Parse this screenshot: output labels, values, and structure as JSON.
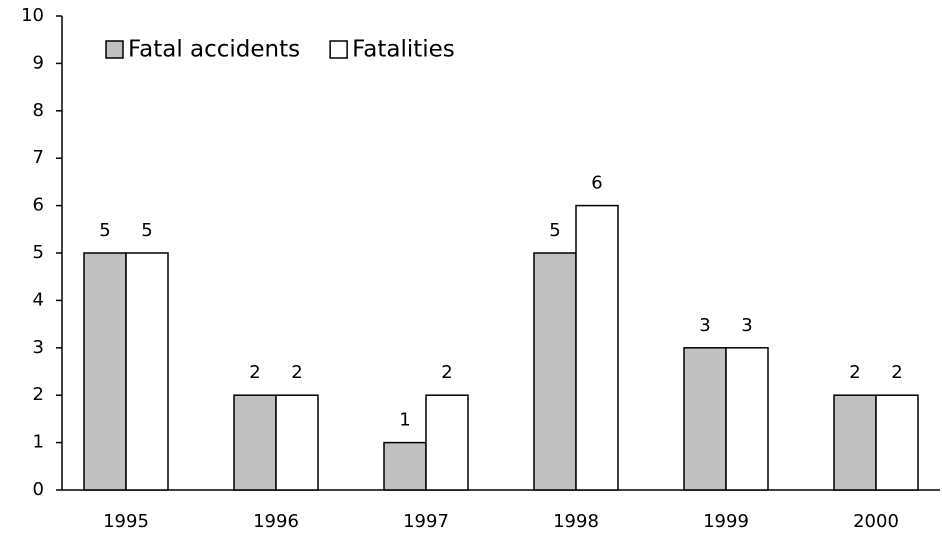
{
  "chart_data": {
    "type": "bar",
    "categories": [
      "1995",
      "1996",
      "1997",
      "1998",
      "1999",
      "2000"
    ],
    "series": [
      {
        "name": "Fatal accidents",
        "color": "#c0c0c0",
        "values": [
          5,
          2,
          1,
          5,
          3,
          2
        ]
      },
      {
        "name": "Fatalities",
        "color": "#ffffff",
        "values": [
          5,
          2,
          2,
          6,
          3,
          2
        ]
      }
    ],
    "ylim": [
      0,
      10
    ],
    "yticks": [
      0,
      1,
      2,
      3,
      4,
      5,
      6,
      7,
      8,
      9,
      10
    ],
    "legend": "top-left"
  }
}
